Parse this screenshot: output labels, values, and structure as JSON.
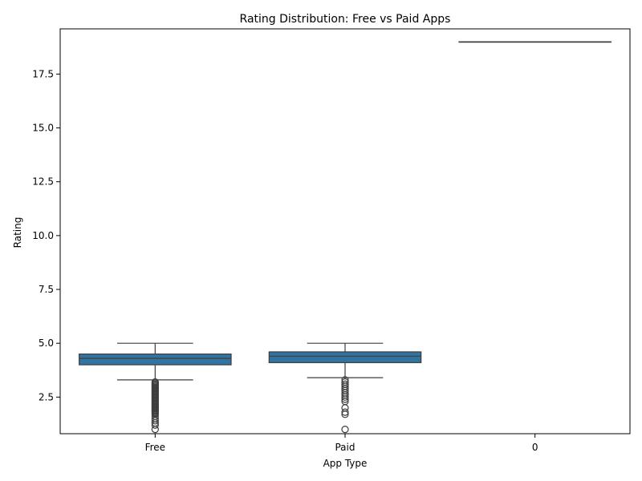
{
  "chart_data": {
    "type": "box",
    "title": "Rating Distribution: Free vs Paid Apps",
    "xlabel": "App Type",
    "ylabel": "Rating",
    "categories": [
      "Free",
      "Paid",
      "0"
    ],
    "ylim": [
      0.8,
      19.6
    ],
    "yticks": [
      2.5,
      5.0,
      7.5,
      10.0,
      12.5,
      15.0,
      17.5
    ],
    "ytick_labels": [
      "2.5",
      "5.0",
      "7.5",
      "10.0",
      "12.5",
      "15.0",
      "17.5"
    ],
    "grid": false,
    "box_color": "#3274a1",
    "line_color": "#3d3d3d",
    "boxes": [
      {
        "category": "Free",
        "whisker_low": 3.3,
        "q1": 4.0,
        "median": 4.3,
        "q3": 4.5,
        "whisker_high": 5.0,
        "outliers": [
          3.2,
          3.15,
          3.1,
          3.05,
          3.0,
          2.95,
          2.9,
          2.85,
          2.8,
          2.75,
          2.7,
          2.65,
          2.6,
          2.55,
          2.5,
          2.45,
          2.4,
          2.35,
          2.3,
          2.25,
          2.2,
          2.15,
          2.1,
          2.05,
          2.0,
          1.95,
          1.9,
          1.85,
          1.8,
          1.75,
          1.7,
          1.6,
          1.5,
          1.4,
          1.3,
          1.2,
          1.0
        ]
      },
      {
        "category": "Paid",
        "whisker_low": 3.4,
        "q1": 4.1,
        "median": 4.4,
        "q3": 4.6,
        "whisker_high": 5.0,
        "outliers": [
          3.3,
          3.2,
          3.1,
          3.0,
          2.9,
          2.8,
          2.7,
          2.6,
          2.5,
          2.4,
          2.3,
          2.0,
          1.8,
          1.7,
          1.0
        ]
      },
      {
        "category": "0",
        "whisker_low": 19.0,
        "q1": 19.0,
        "median": 19.0,
        "q3": 19.0,
        "whisker_high": 19.0,
        "outliers": []
      }
    ]
  }
}
